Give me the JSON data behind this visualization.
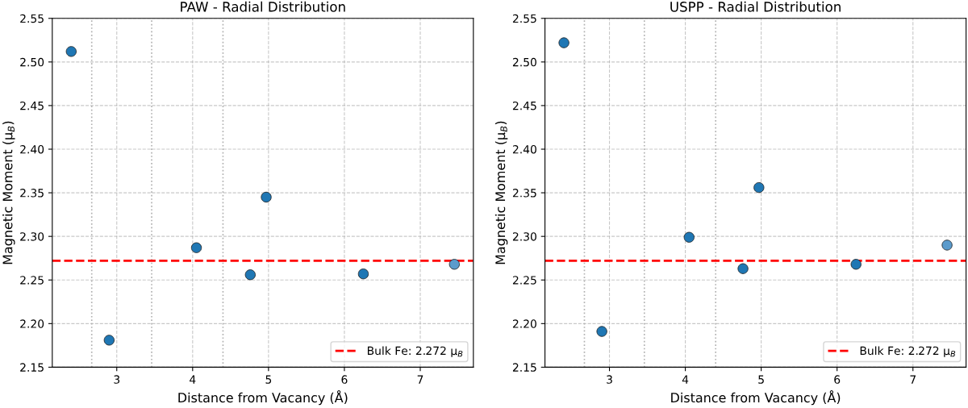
{
  "chart_data": [
    {
      "type": "scatter",
      "title": "PAW - Radial Distribution",
      "xlabel": "Distance from Vacancy (Å)",
      "ylabel": "Magnetic Moment (μ$_{B}$)",
      "x": [
        2.4,
        2.9,
        4.05,
        4.76,
        4.97,
        6.25,
        7.45
      ],
      "series": [
        {
          "values": [
            2.512,
            2.181,
            2.287,
            2.256,
            2.345,
            2.257,
            2.268
          ],
          "colors": [
            "#1f77b4",
            "#1f77b4",
            "#1f77b4",
            "#1f77b4",
            "#1f77b4",
            "#1f77b4",
            "#5b9bcc"
          ]
        }
      ],
      "xlim": [
        2.15,
        7.7
      ],
      "xticks": [
        3,
        4,
        5,
        6,
        7
      ],
      "ylim": [
        2.15,
        2.55
      ],
      "yticks": [
        2.15,
        {
          "value": 2.2,
          "label": "2.20"
        },
        2.25,
        {
          "value": 2.3,
          "label": "2.30"
        },
        2.35,
        {
          "value": 2.4,
          "label": "2.40"
        },
        2.45,
        {
          "value": 2.5,
          "label": "2.50"
        },
        2.55
      ],
      "ref_lines": [
        {
          "axis": "y",
          "value": 2.272,
          "label": "Bulk Fe: 2.272 μ$_{B}$",
          "color": "#ff0000",
          "line_style": "dashed"
        },
        {
          "axis": "x",
          "value": 2.67,
          "color": "#b0b0b0",
          "line_style": "dotted"
        },
        {
          "axis": "x",
          "value": 3.46,
          "color": "#b0b0b0",
          "line_style": "dotted"
        },
        {
          "axis": "x",
          "value": 4.4,
          "color": "#b0b0b0",
          "line_style": "dotted"
        }
      ],
      "grid": true,
      "legend": "bottom right",
      "marker": "circle"
    },
    {
      "type": "scatter",
      "title": "USPP - Radial Distribution",
      "xlabel": "Distance from Vacancy (Å)",
      "ylabel": "Magnetic Moment (μ$_{B}$)",
      "x": [
        2.4,
        2.9,
        4.05,
        4.76,
        4.97,
        6.25,
        7.45
      ],
      "series": [
        {
          "values": [
            2.522,
            2.191,
            2.299,
            2.263,
            2.356,
            2.268,
            2.29
          ],
          "colors": [
            "#1f77b4",
            "#1f77b4",
            "#1f77b4",
            "#1f77b4",
            "#1f77b4",
            "#1f77b4",
            "#5b9bcc"
          ]
        }
      ],
      "xlim": [
        2.15,
        7.7
      ],
      "xticks": [
        3,
        4,
        5,
        6,
        7
      ],
      "ylim": [
        2.15,
        2.55
      ],
      "yticks": [
        2.15,
        {
          "value": 2.2,
          "label": "2.20"
        },
        2.25,
        {
          "value": 2.3,
          "label": "2.30"
        },
        2.35,
        {
          "value": 2.4,
          "label": "2.40"
        },
        2.45,
        {
          "value": 2.5,
          "label": "2.50"
        },
        2.55
      ],
      "ref_lines": [
        {
          "axis": "y",
          "value": 2.272,
          "label": "Bulk Fe: 2.272 μ$_{B}$",
          "color": "#ff0000",
          "line_style": "dashed"
        },
        {
          "axis": "x",
          "value": 2.67,
          "color": "#b0b0b0",
          "line_style": "dotted"
        },
        {
          "axis": "x",
          "value": 3.46,
          "color": "#b0b0b0",
          "line_style": "dotted"
        },
        {
          "axis": "x",
          "value": 4.4,
          "color": "#b0b0b0",
          "line_style": "dotted"
        }
      ],
      "grid": true,
      "legend": "bottom right",
      "marker": "circle"
    }
  ]
}
